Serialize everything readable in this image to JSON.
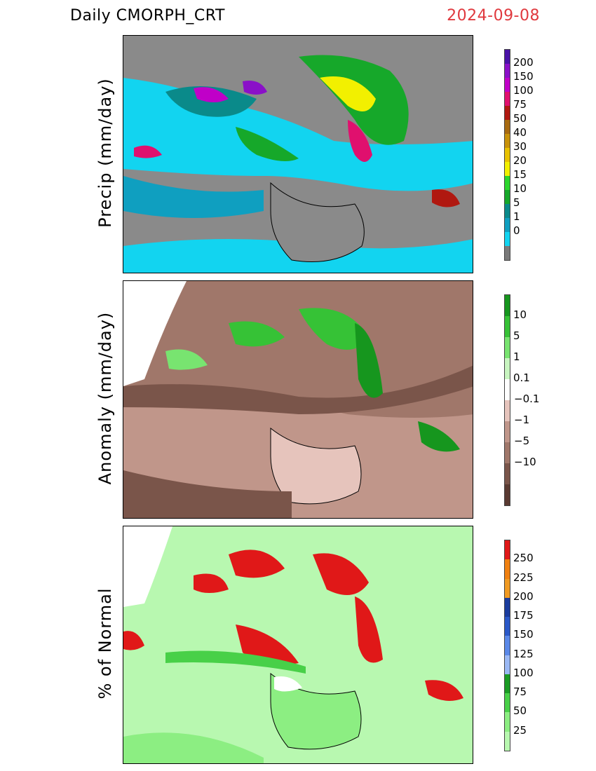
{
  "header": {
    "title": "Daily  CMORPH_CRT",
    "date": "2024-09-08"
  },
  "panels": [
    {
      "label": "Precip  (mm/day)",
      "colorbar": {
        "colors": [
          "#7a7a7a",
          "#12d4f0",
          "#0f9fc0",
          "#0a8a8a",
          "#16a82a",
          "#2cd62c",
          "#f2f000",
          "#e8c200",
          "#c8920a",
          "#a86a10",
          "#b01810",
          "#e0106e",
          "#c000c8",
          "#8a10c8",
          "#4a12a8"
        ],
        "ticks": [
          "200",
          "150",
          "100",
          "75",
          "50",
          "40",
          "30",
          "20",
          "15",
          "10",
          "5",
          "1",
          "0"
        ]
      }
    },
    {
      "label": "Anomaly  (mm/day)",
      "colorbar": {
        "colors": [
          "#5a3a32",
          "#7a554a",
          "#a0776a",
          "#c0968a",
          "#e6c4bc",
          "#ffffff",
          "#c8f5c0",
          "#78e470",
          "#36c236",
          "#16961e"
        ],
        "ticks": [
          "10",
          "5",
          "1",
          "0.1",
          "−0.1",
          "−1",
          "−5",
          "−10"
        ]
      }
    },
    {
      "label": "%  of  Normal",
      "colorbar": {
        "colors": [
          "#b8f8b0",
          "#8cee82",
          "#48d048",
          "#1a9c24",
          "#9ab8f4",
          "#5a88e8",
          "#2a58c8",
          "#1a3c9e",
          "#f09a22",
          "#f08010",
          "#e01818"
        ],
        "ticks": [
          "250",
          "225",
          "200",
          "175",
          "150",
          "125",
          "100",
          "75",
          "50",
          "25"
        ]
      }
    }
  ]
}
